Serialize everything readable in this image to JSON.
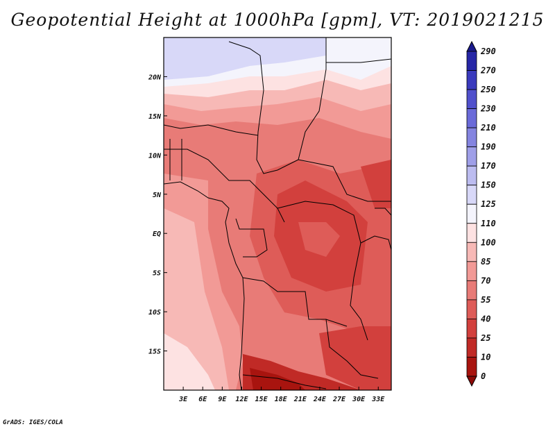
{
  "title": "Geopotential Height at 1000hPa [gpm], VT: 2019021215",
  "credit": "GrADS: IGES/COLA",
  "map": {
    "lat_labels": [
      "20N",
      "15N",
      "10N",
      "5N",
      "EQ",
      "5S",
      "10S",
      "15S"
    ],
    "lat_values": [
      20,
      15,
      10,
      5,
      0,
      -5,
      -10,
      -15
    ],
    "lon_labels": [
      "3E",
      "6E",
      "9E",
      "12E",
      "15E",
      "18E",
      "21E",
      "24E",
      "27E",
      "30E",
      "33E"
    ],
    "lon_values": [
      3,
      6,
      9,
      12,
      15,
      18,
      21,
      24,
      27,
      30,
      33
    ],
    "lon_range": [
      0,
      35
    ],
    "lat_range": [
      -20,
      25
    ]
  },
  "colorbar": {
    "labels": [
      "290",
      "270",
      "250",
      "230",
      "210",
      "190",
      "170",
      "150",
      "125",
      "110",
      "100",
      "85",
      "70",
      "55",
      "40",
      "25",
      "10",
      "0"
    ],
    "colors": [
      "#1a1a8c",
      "#2626a6",
      "#3a3abd",
      "#5050cc",
      "#6a6ad9",
      "#8484e0",
      "#9f9fe8",
      "#bcbcf0",
      "#d8d8f8",
      "#f4f4fc",
      "#fde2e2",
      "#f7b9b6",
      "#f29a96",
      "#e87b77",
      "#de5c58",
      "#d2403d",
      "#c02a26",
      "#a8140f",
      "#8c0a07"
    ]
  },
  "colors": {
    "map_border": "#000000",
    "background": "#ffffff"
  }
}
